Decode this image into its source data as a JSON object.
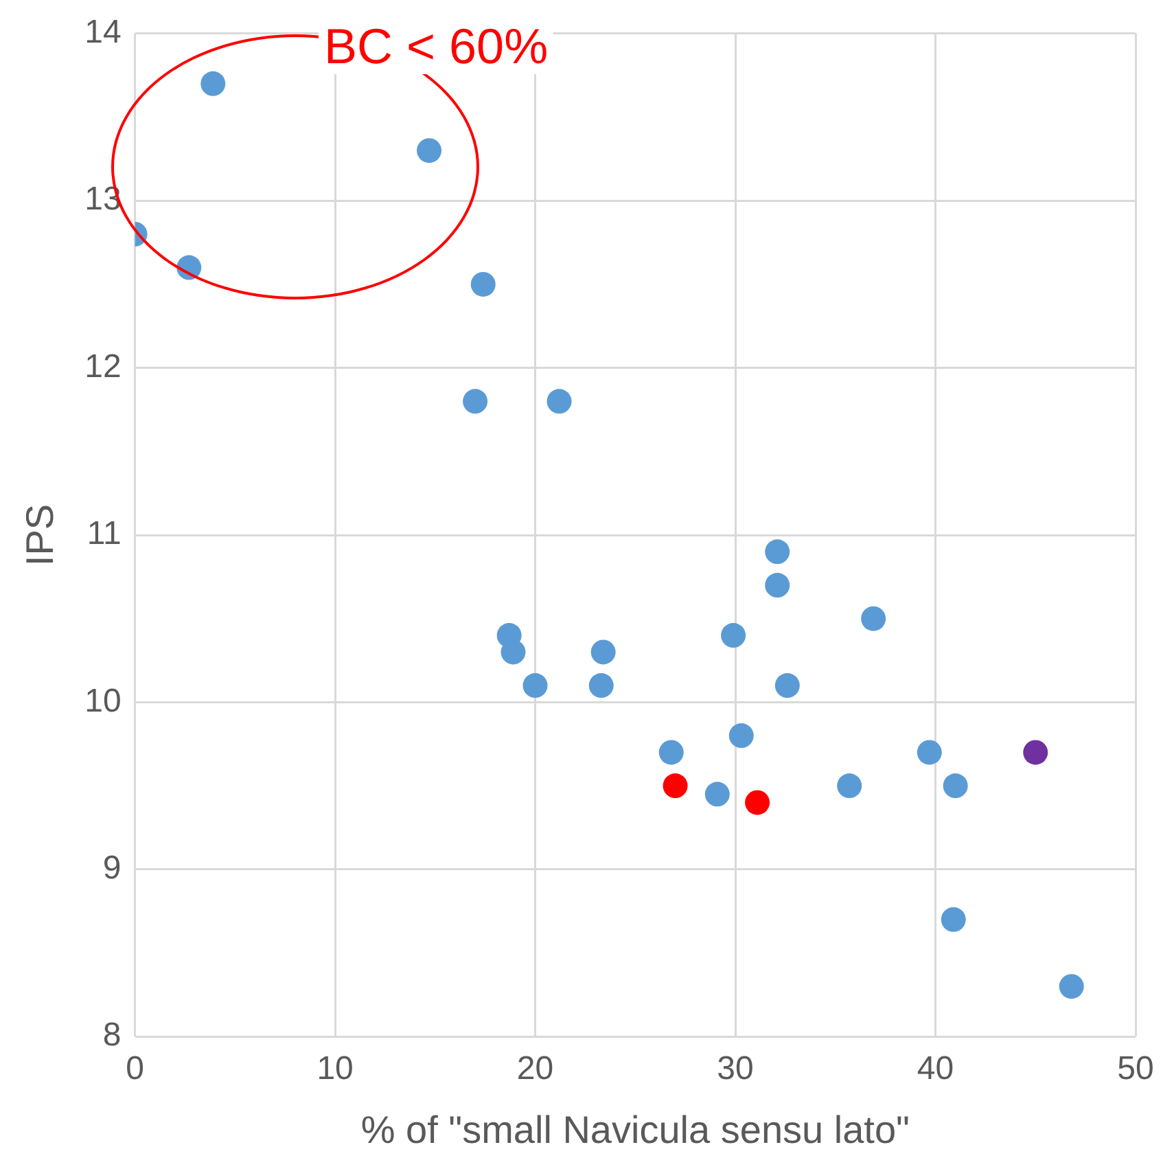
{
  "chart_data": {
    "type": "scatter",
    "xlabel": "% of \"small Navicula sensu lato\"",
    "ylabel": "IPS",
    "xlim": [
      0,
      50
    ],
    "xticks": [
      0,
      10,
      20,
      30,
      40,
      50
    ],
    "ylim": [
      8,
      14
    ],
    "yticks": [
      8,
      9,
      10,
      11,
      12,
      13,
      14
    ],
    "grid": true,
    "legend": false,
    "marker": "circle",
    "annotations": [
      "BC < 60%"
    ],
    "series": [
      {
        "color": "#5b9bd5",
        "x": [
          0,
          2.7,
          3.9,
          14.7,
          17.4,
          17.0,
          21.2,
          18.7,
          18.9,
          20.0,
          23.4,
          23.3,
          26.8,
          29.1,
          29.9,
          30.3,
          32.1,
          32.1,
          32.6,
          36.9,
          35.7,
          39.7,
          41.0,
          40.9,
          46.8
        ],
        "values": [
          12.8,
          12.6,
          13.7,
          13.3,
          12.5,
          11.8,
          11.8,
          10.4,
          10.3,
          10.1,
          10.3,
          10.1,
          9.7,
          9.45,
          10.4,
          9.8,
          10.9,
          10.7,
          10.1,
          10.5,
          9.5,
          9.7,
          9.5,
          8.7,
          8.3
        ]
      },
      {
        "color": "#ff0000",
        "x": [
          27.0,
          31.1
        ],
        "values": [
          9.5,
          9.4
        ]
      },
      {
        "color": "#7030a0",
        "x": [
          45.0
        ],
        "values": [
          9.7
        ]
      }
    ]
  }
}
